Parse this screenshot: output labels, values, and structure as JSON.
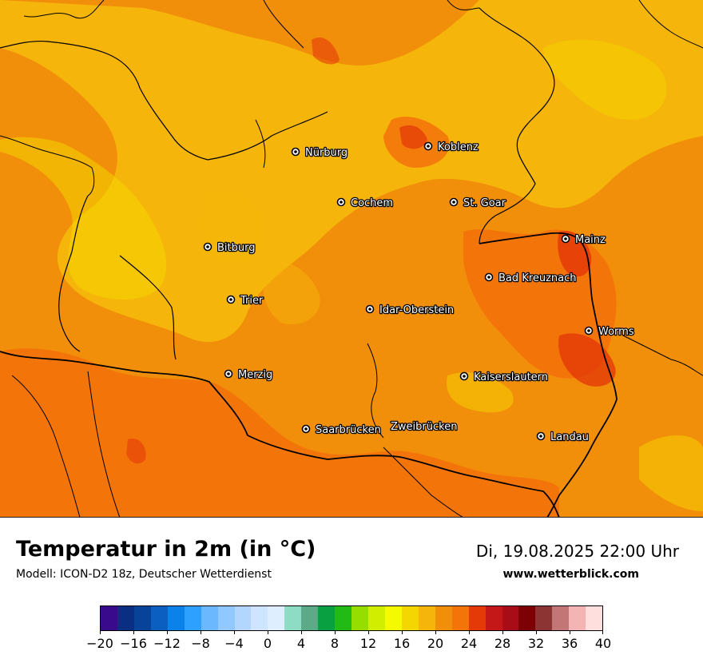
{
  "map": {
    "cities": [
      {
        "name": "Nürburg"
      },
      {
        "name": "Koblenz"
      },
      {
        "name": "Cochem"
      },
      {
        "name": "St. Goar"
      },
      {
        "name": "Mainz"
      },
      {
        "name": "Bitburg"
      },
      {
        "name": "Bad Kreuznach"
      },
      {
        "name": "Trier"
      },
      {
        "name": "Idar-Oberstein"
      },
      {
        "name": "Worms"
      },
      {
        "name": "Merzig"
      },
      {
        "name": "Kaiserslautern"
      },
      {
        "name": "Saarbrücken"
      },
      {
        "name": "Zweibrücken"
      },
      {
        "name": "Landau"
      }
    ]
  },
  "header": {
    "title": "Temperatur in 2m (in °C)",
    "subtitle": "Modell: ICON-D2 18z, Deutscher Wetterdienst",
    "datetime": "Di, 19.08.2025 22:00 Uhr",
    "website": "www.wetterblick.com"
  },
  "legend": {
    "colors": [
      "#3a0a8c",
      "#0a2f82",
      "#08439a",
      "#0a5fc0",
      "#0a82ea",
      "#2ea0ff",
      "#6cb8ff",
      "#90c8ff",
      "#b2d6ff",
      "#cfe4ff",
      "#dfeefe",
      "#8edcc4",
      "#5caa88",
      "#08a040",
      "#22bb16",
      "#96dd00",
      "#d2ee00",
      "#f6fa00",
      "#f4d600",
      "#f5b50a",
      "#f28f0a",
      "#f3750a",
      "#e43a08",
      "#c41818",
      "#a80c16",
      "#7c0004",
      "#8c3434",
      "#c27676",
      "#f4b4b4",
      "#ffdede"
    ],
    "tick_labels": [
      "−20",
      "−16",
      "−12",
      "−8",
      "−4",
      "0",
      "4",
      "8",
      "12",
      "16",
      "20",
      "24",
      "28",
      "32",
      "36",
      "40"
    ],
    "min": -20,
    "max": 40
  }
}
